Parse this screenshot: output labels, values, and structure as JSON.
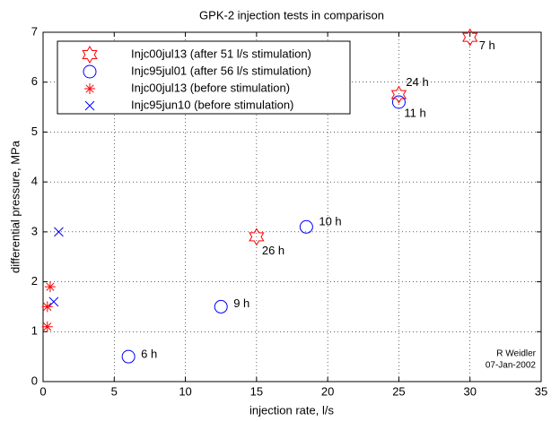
{
  "chart_data": {
    "type": "scatter",
    "title": "GPK-2 injection tests in comparison",
    "x_label": "injection rate, l/s",
    "y_label": "differential pressure, MPa",
    "xlim": [
      0,
      35
    ],
    "xticks": [
      0,
      5,
      10,
      15,
      20,
      25,
      30,
      35
    ],
    "ylim": [
      0,
      7
    ],
    "yticks": [
      0,
      1,
      2,
      3,
      4,
      5,
      6,
      7
    ],
    "grid": true,
    "legend": "upper left",
    "annotations": [
      "R Weidler",
      "07-Jan-2002"
    ],
    "series": [
      {
        "name": "Injc00jul13 (after 51 l/s stimulation)",
        "marker": "hexagram",
        "color": "#ff0000",
        "x": [
          15,
          25,
          30
        ],
        "values": [
          2.9,
          5.75,
          6.9
        ],
        "point_labels": [
          "26 h",
          "24 h",
          "7 h"
        ]
      },
      {
        "name": "Injc95jul01 (after 56 l/s stimulation)",
        "marker": "circle",
        "color": "#0000ff",
        "x": [
          6,
          12.5,
          18.5,
          25
        ],
        "values": [
          0.5,
          1.5,
          3.1,
          5.6
        ],
        "point_labels": [
          "6 h",
          "9 h",
          "10 h",
          "11 h"
        ]
      },
      {
        "name": "Injc00jul13 (before stimulation)",
        "marker": "asterisk",
        "color": "#ff0000",
        "x": [
          0.3,
          0.3,
          0.5
        ],
        "values": [
          1.1,
          1.5,
          1.9
        ]
      },
      {
        "name": "Injc95jun10 (before stimulation)",
        "marker": "x",
        "color": "#0000ff",
        "x": [
          0.75,
          1.1
        ],
        "values": [
          1.6,
          3.0
        ]
      }
    ]
  }
}
